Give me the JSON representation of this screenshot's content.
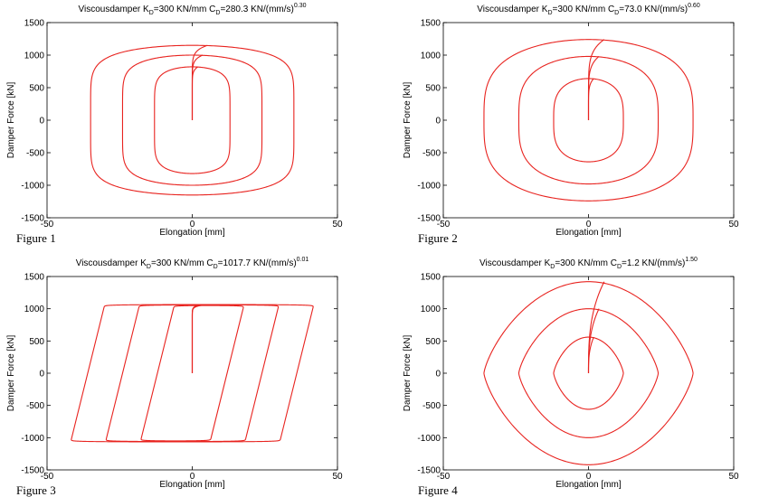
{
  "charts": [
    {
      "id": "fig1",
      "caption": "Figure 1",
      "title_main": "Viscousdamper K",
      "title_sub1": "D",
      "title_mid": "=300 KN/mm C",
      "title_sub2": "D",
      "title_tail": "=280.3 KN/(mm/s)",
      "title_sup": "0.30"
    },
    {
      "id": "fig2",
      "caption": "Figure 2",
      "title_main": "Viscousdamper K",
      "title_sub1": "D",
      "title_mid": "=300 KN/mm C",
      "title_sub2": "D",
      "title_tail": "=73.0 KN/(mm/s)",
      "title_sup": "0.60"
    },
    {
      "id": "fig3",
      "caption": "Figure 3",
      "title_main": "Viscousdamper K",
      "title_sub1": "D",
      "title_mid": "=300 KN/mm C",
      "title_sub2": "D",
      "title_tail": "=1017.7 KN/(mm/s)",
      "title_sup": "0.01"
    },
    {
      "id": "fig4",
      "caption": "Figure 4",
      "title_main": "Viscousdamper K",
      "title_sub1": "D",
      "title_mid": "=300 KN/mm C",
      "title_sub2": "D",
      "title_tail": "=1.2 KN/(mm/s)",
      "title_sup": "1.50"
    }
  ],
  "chart_data": [
    {
      "type": "line",
      "title": "Viscousdamper KD=300 KN/mm CD=280.3 KN/(mm/s)^0.30",
      "xlabel": "Elongation [mm]",
      "ylabel": "Damper Force [kN]",
      "xlim": [
        -50,
        50
      ],
      "ylim": [
        -1500,
        1500
      ],
      "x_ticks": [
        "-50",
        "0",
        "50"
      ],
      "y_ticks": [
        "1500",
        "1000",
        "500",
        "0",
        "-500",
        "-1000",
        "-1500"
      ],
      "grid": false,
      "color": "#e8231f",
      "loop_shape": 0.3,
      "loops": [
        {
          "amplitude_mm": 35,
          "peak_force": 1150
        },
        {
          "amplitude_mm": 24,
          "peak_force": 1000
        },
        {
          "amplitude_mm": 13,
          "peak_force": 820
        }
      ]
    },
    {
      "type": "line",
      "title": "Viscousdamper KD=300 KN/mm CD=73.0 KN/(mm/s)^0.60",
      "xlabel": "Elongation [mm]",
      "ylabel": "Damper Force [kN]",
      "xlim": [
        -50,
        50
      ],
      "ylim": [
        -1500,
        1500
      ],
      "x_ticks": [
        "-50",
        "0",
        "50"
      ],
      "y_ticks": [
        "1500",
        "1000",
        "500",
        "0",
        "-500",
        "-1000",
        "-1500"
      ],
      "grid": false,
      "color": "#e8231f",
      "loop_shape": 0.6,
      "loops": [
        {
          "amplitude_mm": 36,
          "peak_force": 1240
        },
        {
          "amplitude_mm": 24,
          "peak_force": 980
        },
        {
          "amplitude_mm": 12,
          "peak_force": 640
        }
      ]
    },
    {
      "type": "line",
      "title": "Viscousdamper KD=300 KN/mm CD=1017.7 KN/(mm/s)^0.01",
      "xlabel": "Elongation [mm]",
      "ylabel": "Damper Force [kN]",
      "xlim": [
        -50,
        50
      ],
      "ylim": [
        -1500,
        1500
      ],
      "x_ticks": [
        "-50",
        "0",
        "50"
      ],
      "y_ticks": [
        "1500",
        "1000",
        "500",
        "0",
        "-500",
        "-1000",
        "-1500"
      ],
      "grid": false,
      "color": "#e8231f",
      "loop_shape": 0.01,
      "loops": [
        {
          "amplitude_mm": 36,
          "peak_force": 1065
        },
        {
          "amplitude_mm": 24,
          "peak_force": 1060
        },
        {
          "amplitude_mm": 12,
          "peak_force": 1050
        }
      ]
    },
    {
      "type": "line",
      "title": "Viscousdamper KD=300 KN/mm CD=1.2 KN/(mm/s)^1.50",
      "xlabel": "Elongation [mm]",
      "ylabel": "Damper Force [kN]",
      "xlim": [
        -50,
        50
      ],
      "ylim": [
        -1500,
        1500
      ],
      "x_ticks": [
        "-50",
        "0",
        "50"
      ],
      "y_ticks": [
        "1500",
        "1000",
        "500",
        "0",
        "-500",
        "-1000",
        "-1500"
      ],
      "grid": false,
      "color": "#e8231f",
      "loop_shape": 1.5,
      "loops": [
        {
          "amplitude_mm": 36,
          "peak_force": 1420
        },
        {
          "amplitude_mm": 24,
          "peak_force": 1000
        },
        {
          "amplitude_mm": 12,
          "peak_force": 560
        }
      ]
    }
  ]
}
